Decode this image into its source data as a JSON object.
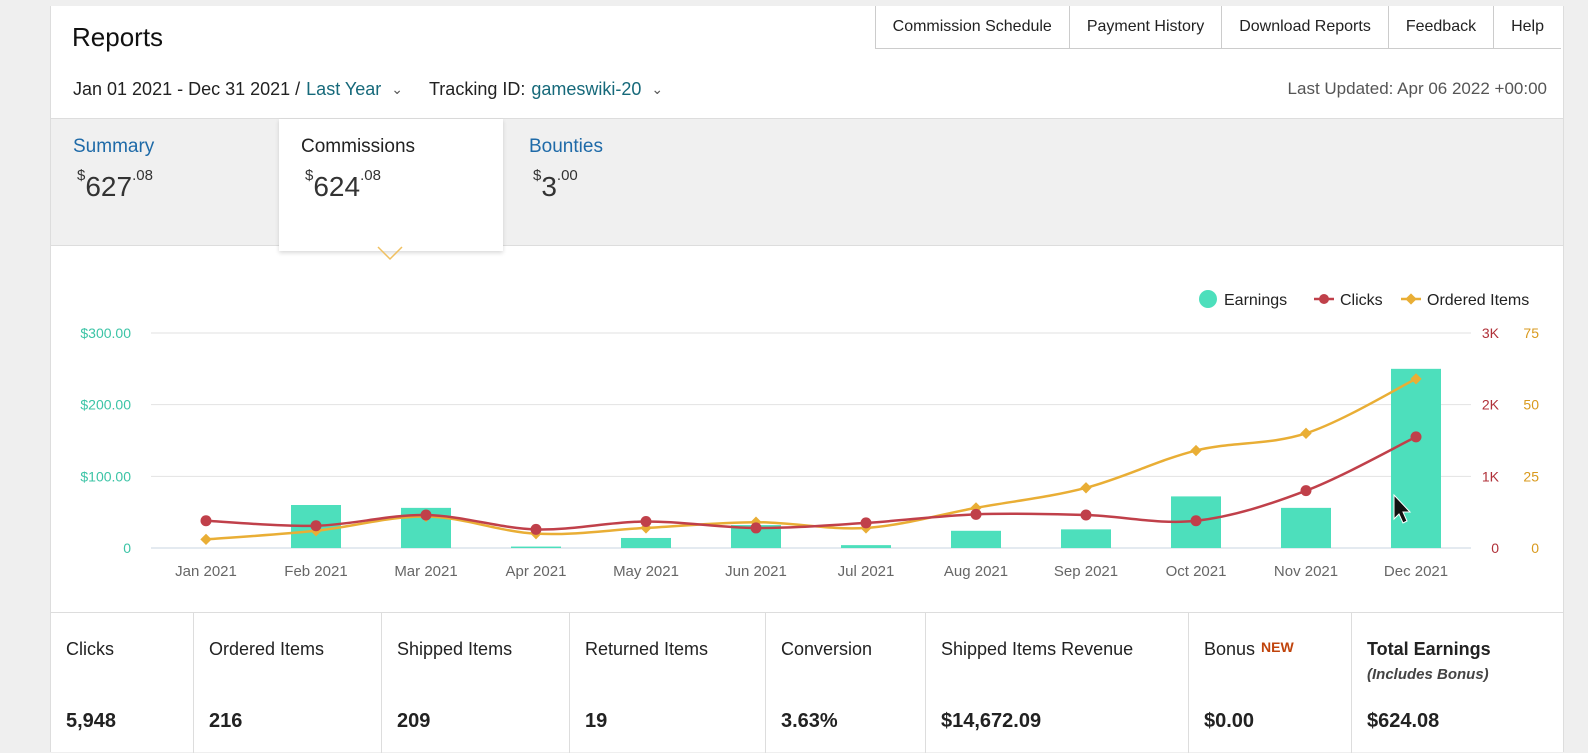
{
  "header": {
    "title": "Reports",
    "nav": [
      "Commission Schedule",
      "Payment History",
      "Download Reports",
      "Feedback",
      "Help"
    ],
    "date_range": "Jan 01 2021 - Dec 31 2021 /",
    "period": "Last Year",
    "tracking_label": "Tracking ID:",
    "tracking_id": "gameswiki-20",
    "last_updated": "Last Updated: Apr 06 2022 +00:00"
  },
  "tabs": {
    "summary": {
      "label": "Summary",
      "currency": "$",
      "whole": "627",
      "cents": ".08"
    },
    "commissions": {
      "label": "Commissions",
      "currency": "$",
      "whole": "624",
      "cents": ".08"
    },
    "bounties": {
      "label": "Bounties",
      "currency": "$",
      "whole": "3",
      "cents": ".00"
    }
  },
  "colors": {
    "earnings": "#4ddfbc",
    "clicks": "#c0404a",
    "ordered": "#e9ae35",
    "left_axis": "#3cc4a6",
    "right_axis_clicks": "#b03038",
    "right_axis_items": "#d99a1e"
  },
  "chart_data": {
    "type": "bar",
    "categories": [
      "Jan 2021",
      "Feb 2021",
      "Mar 2021",
      "Apr 2021",
      "May 2021",
      "Jun 2021",
      "Jul 2021",
      "Aug 2021",
      "Sep 2021",
      "Oct 2021",
      "Nov 2021",
      "Dec 2021"
    ],
    "series": [
      {
        "name": "Earnings",
        "type": "bar",
        "axis": "left",
        "values": [
          0,
          60,
          56,
          2,
          14,
          32,
          4,
          24,
          26,
          72,
          56,
          250
        ]
      },
      {
        "name": "Clicks",
        "type": "line",
        "axis": "right-clicks",
        "values": [
          380,
          310,
          460,
          260,
          370,
          280,
          350,
          470,
          460,
          380,
          800,
          1550
        ]
      },
      {
        "name": "Ordered Items",
        "type": "line",
        "axis": "right-items",
        "values": [
          3,
          6,
          11,
          5,
          7,
          9,
          7,
          14,
          21,
          34,
          40,
          59
        ]
      }
    ],
    "left_axis": {
      "ticks": [
        "0",
        "$100.00",
        "$200.00",
        "$300.00"
      ],
      "ylim": [
        0,
        300
      ]
    },
    "right_axis_clicks": {
      "ticks": [
        "0",
        "1K",
        "2K",
        "3K"
      ],
      "ylim": [
        0,
        3000
      ]
    },
    "right_axis_items": {
      "ticks": [
        "0",
        "25",
        "50",
        "75"
      ],
      "ylim": [
        0,
        75
      ]
    },
    "legend": [
      "Earnings",
      "Clicks",
      "Ordered Items"
    ],
    "legend_position": "top-right",
    "grid": true
  },
  "stats": [
    {
      "label": "Clicks",
      "value": "5,948"
    },
    {
      "label": "Ordered Items",
      "value": "216"
    },
    {
      "label": "Shipped Items",
      "value": "209"
    },
    {
      "label": "Returned Items",
      "value": "19"
    },
    {
      "label": "Conversion",
      "value": "3.63%"
    },
    {
      "label": "Shipped Items Revenue",
      "value": "$14,672.09"
    },
    {
      "label": "Bonus",
      "badge": "NEW",
      "value": "$0.00"
    },
    {
      "label": "Total Earnings",
      "note": "(Includes Bonus)",
      "value": "$624.08"
    }
  ]
}
